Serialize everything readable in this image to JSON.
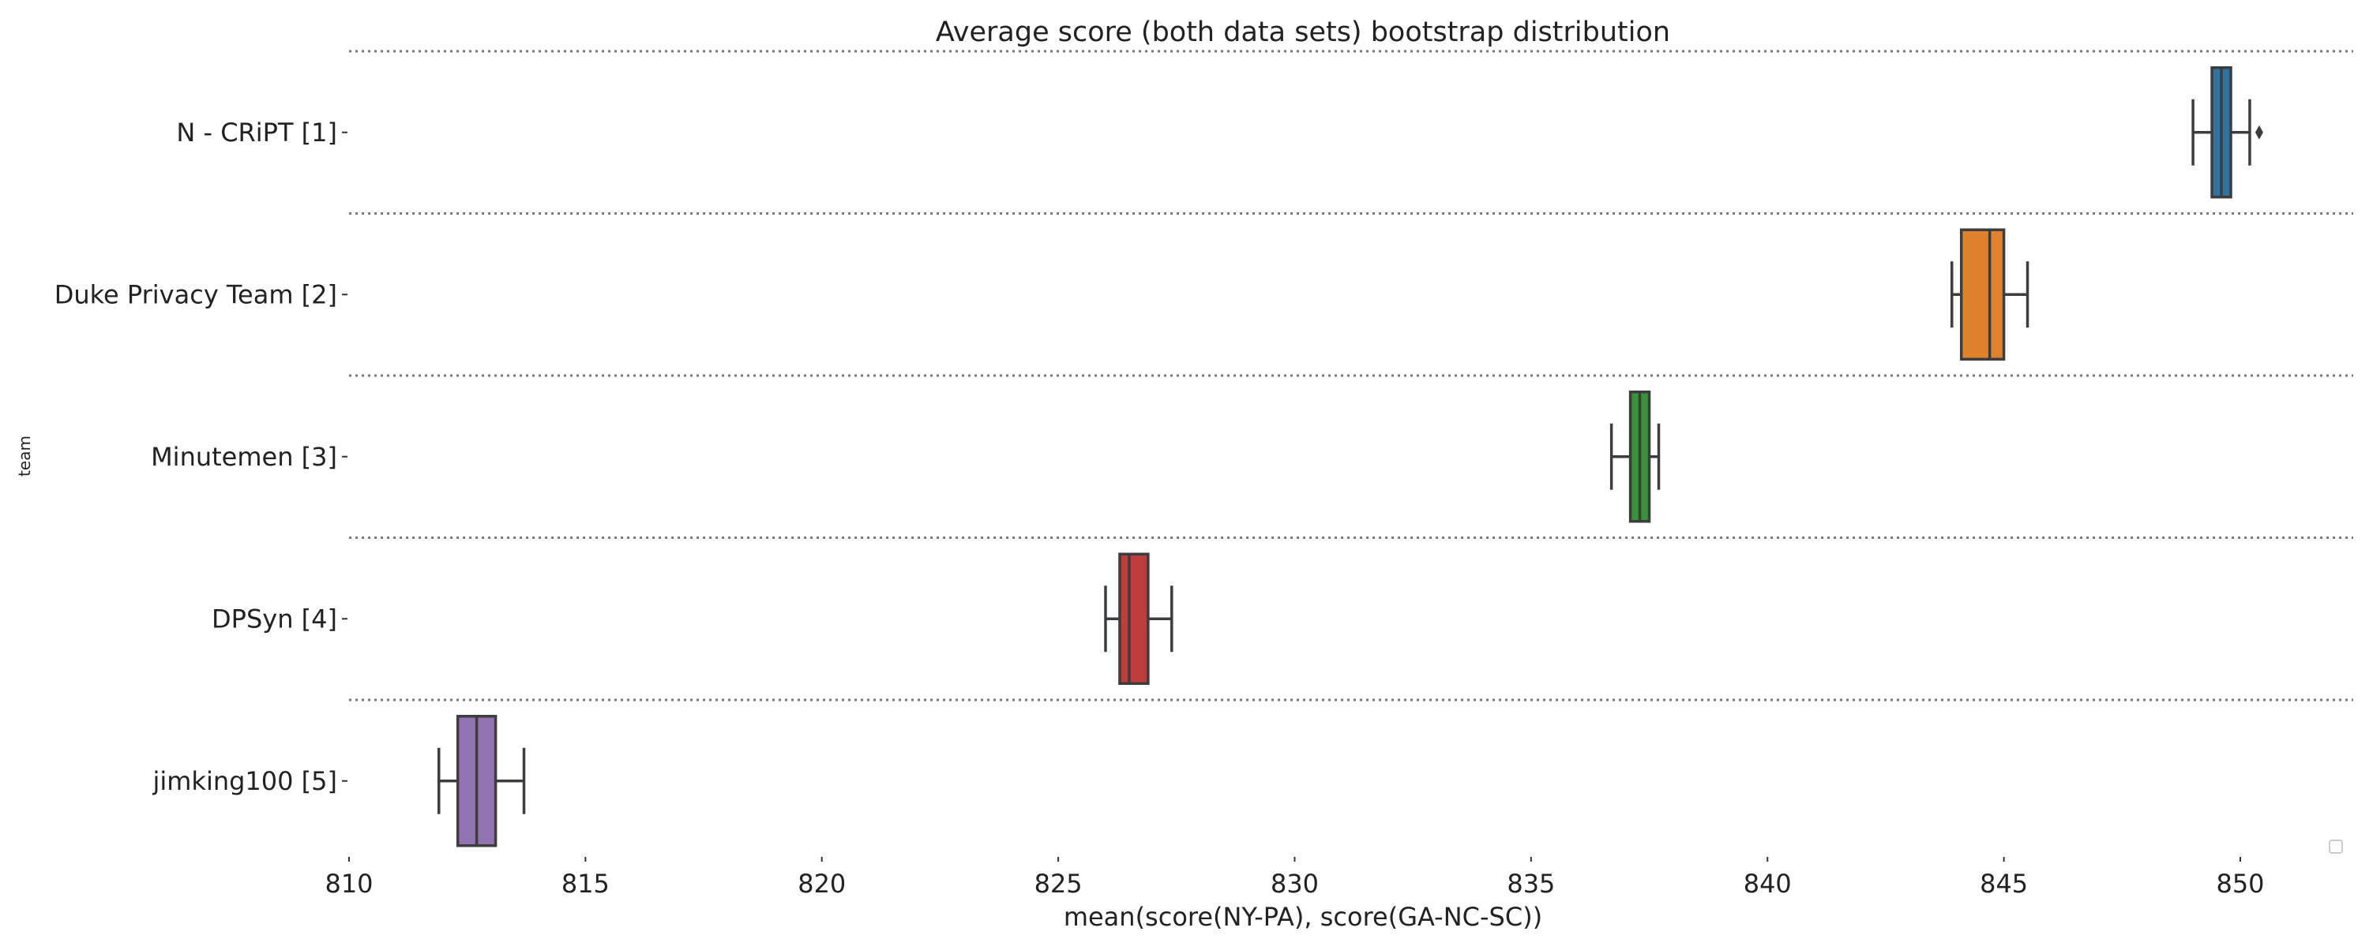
{
  "chart_data": {
    "type": "boxplot",
    "orientation": "horizontal",
    "title": "Average score (both data sets) bootstrap distribution",
    "xlabel": "mean(score(NY-PA), score(GA-NC-SC))",
    "ylabel": "team",
    "xlim": [
      810,
      852.4
    ],
    "xticks": [
      810,
      815,
      820,
      825,
      830,
      835,
      840,
      845,
      850
    ],
    "grid": "horizontal dotted separators between categories",
    "legend": "bottom-right (empty)",
    "categories": [
      "N - CRiPT [1]",
      "Duke Privacy Team [2]",
      "Minutemen [3]",
      "DPSyn [4]",
      "jimking100 [5]"
    ],
    "colors": [
      "#3274a1",
      "#e1812c",
      "#3a923a",
      "#c03d3e",
      "#9372b2"
    ],
    "boxes": [
      {
        "whislo": 849.0,
        "q1": 849.4,
        "med": 849.6,
        "q3": 849.8,
        "whishi": 850.2,
        "fliers": [
          850.4
        ]
      },
      {
        "whislo": 843.9,
        "q1": 844.1,
        "med": 844.7,
        "q3": 845.0,
        "whishi": 845.5,
        "fliers": []
      },
      {
        "whislo": 836.7,
        "q1": 837.1,
        "med": 837.3,
        "q3": 837.5,
        "whishi": 837.7,
        "fliers": []
      },
      {
        "whislo": 826.0,
        "q1": 826.3,
        "med": 826.5,
        "q3": 826.9,
        "whishi": 827.4,
        "fliers": []
      },
      {
        "whislo": 811.9,
        "q1": 812.3,
        "med": 812.7,
        "q3": 813.1,
        "whishi": 813.7,
        "fliers": []
      }
    ]
  }
}
